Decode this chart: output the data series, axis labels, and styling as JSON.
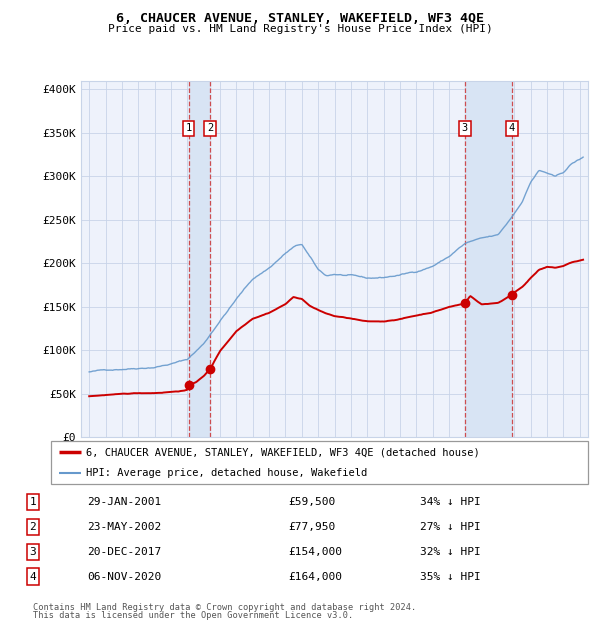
{
  "title": "6, CHAUCER AVENUE, STANLEY, WAKEFIELD, WF3 4QE",
  "subtitle": "Price paid vs. HM Land Registry's House Price Index (HPI)",
  "footer1": "Contains HM Land Registry data © Crown copyright and database right 2024.",
  "footer2": "This data is licensed under the Open Government Licence v3.0.",
  "legend_red": "6, CHAUCER AVENUE, STANLEY, WAKEFIELD, WF3 4QE (detached house)",
  "legend_blue": "HPI: Average price, detached house, Wakefield",
  "transactions": [
    {
      "num": 1,
      "date_x": 2001.08,
      "price": 59500
    },
    {
      "num": 2,
      "date_x": 2002.39,
      "price": 77950
    },
    {
      "num": 3,
      "date_x": 2017.97,
      "price": 154000
    },
    {
      "num": 4,
      "date_x": 2020.85,
      "price": 164000
    }
  ],
  "table_rows": [
    [
      "1",
      "29-JAN-2001",
      "£59,500",
      "34% ↓ HPI"
    ],
    [
      "2",
      "23-MAY-2002",
      "£77,950",
      "27% ↓ HPI"
    ],
    [
      "3",
      "20-DEC-2017",
      "£154,000",
      "32% ↓ HPI"
    ],
    [
      "4",
      "06-NOV-2020",
      "£164,000",
      "35% ↓ HPI"
    ]
  ],
  "xlim": [
    1994.5,
    2025.5
  ],
  "ylim": [
    0,
    410000
  ],
  "yticks": [
    0,
    50000,
    100000,
    150000,
    200000,
    250000,
    300000,
    350000,
    400000
  ],
  "ytick_labels": [
    "£0",
    "£50K",
    "£100K",
    "£150K",
    "£200K",
    "£250K",
    "£300K",
    "£350K",
    "£400K"
  ],
  "xticks": [
    1995,
    1996,
    1997,
    1998,
    1999,
    2000,
    2001,
    2002,
    2003,
    2004,
    2005,
    2006,
    2007,
    2008,
    2009,
    2010,
    2011,
    2012,
    2013,
    2014,
    2015,
    2016,
    2017,
    2018,
    2019,
    2020,
    2021,
    2022,
    2023,
    2024,
    2025
  ],
  "bg_color": "#eef2fb",
  "grid_color": "#c8d4e8",
  "red_color": "#cc0000",
  "blue_color": "#6699cc",
  "shade_color": "#d8e4f4"
}
